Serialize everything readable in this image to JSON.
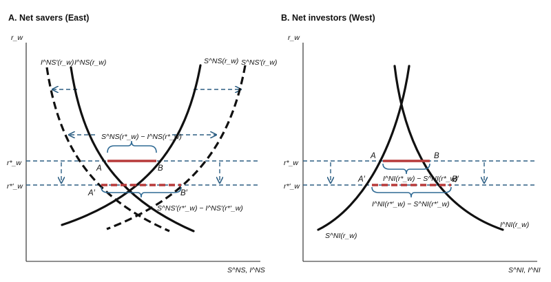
{
  "panel_a": {
    "title": "A. Net savers (East)",
    "y_axis_label": "r_w",
    "x_axis_label": "S^NS, I^NS",
    "y_ticks": {
      "rstar": "r*_w",
      "rstar_prime": "r*′_w"
    },
    "curves": {
      "I_prime": "I^NS′(r_w)",
      "I": "I^NS(r_w)",
      "S": "S^NS(r_w)",
      "S_prime": "S^NS′(r_w)"
    },
    "gap_labels": {
      "top": "S^NS(r*_w) − I^NS(r*_w)",
      "bottom": "S^NS′(r*′_w) − I^NS′(r*′_w)"
    },
    "points": {
      "A": "A",
      "B": "B",
      "A_prime": "A′",
      "B_prime": "B′"
    }
  },
  "panel_b": {
    "title": "B. Net investors (West)",
    "y_axis_label": "r_w",
    "x_axis_label": "S^NI, I^NI",
    "y_ticks": {
      "rstar": "r*_w",
      "rstar_prime": "r*′_w"
    },
    "curves": {
      "S": "S^NI(r_w)",
      "I": "I^NI(r_w)"
    },
    "gap_labels": {
      "top": "I^NI(r*_w) − S^NI(r*_w)",
      "bottom": "I^NI(r*′_w) − S^NI(r*′_w)"
    },
    "points": {
      "A": "A",
      "B": "B",
      "A_prime": "A′",
      "B_prime": "B′"
    }
  },
  "colors": {
    "curve": "#111111",
    "shift_arrows": "#2b5d82",
    "gap": "#b73a3a",
    "brace": "#2f6a94"
  }
}
